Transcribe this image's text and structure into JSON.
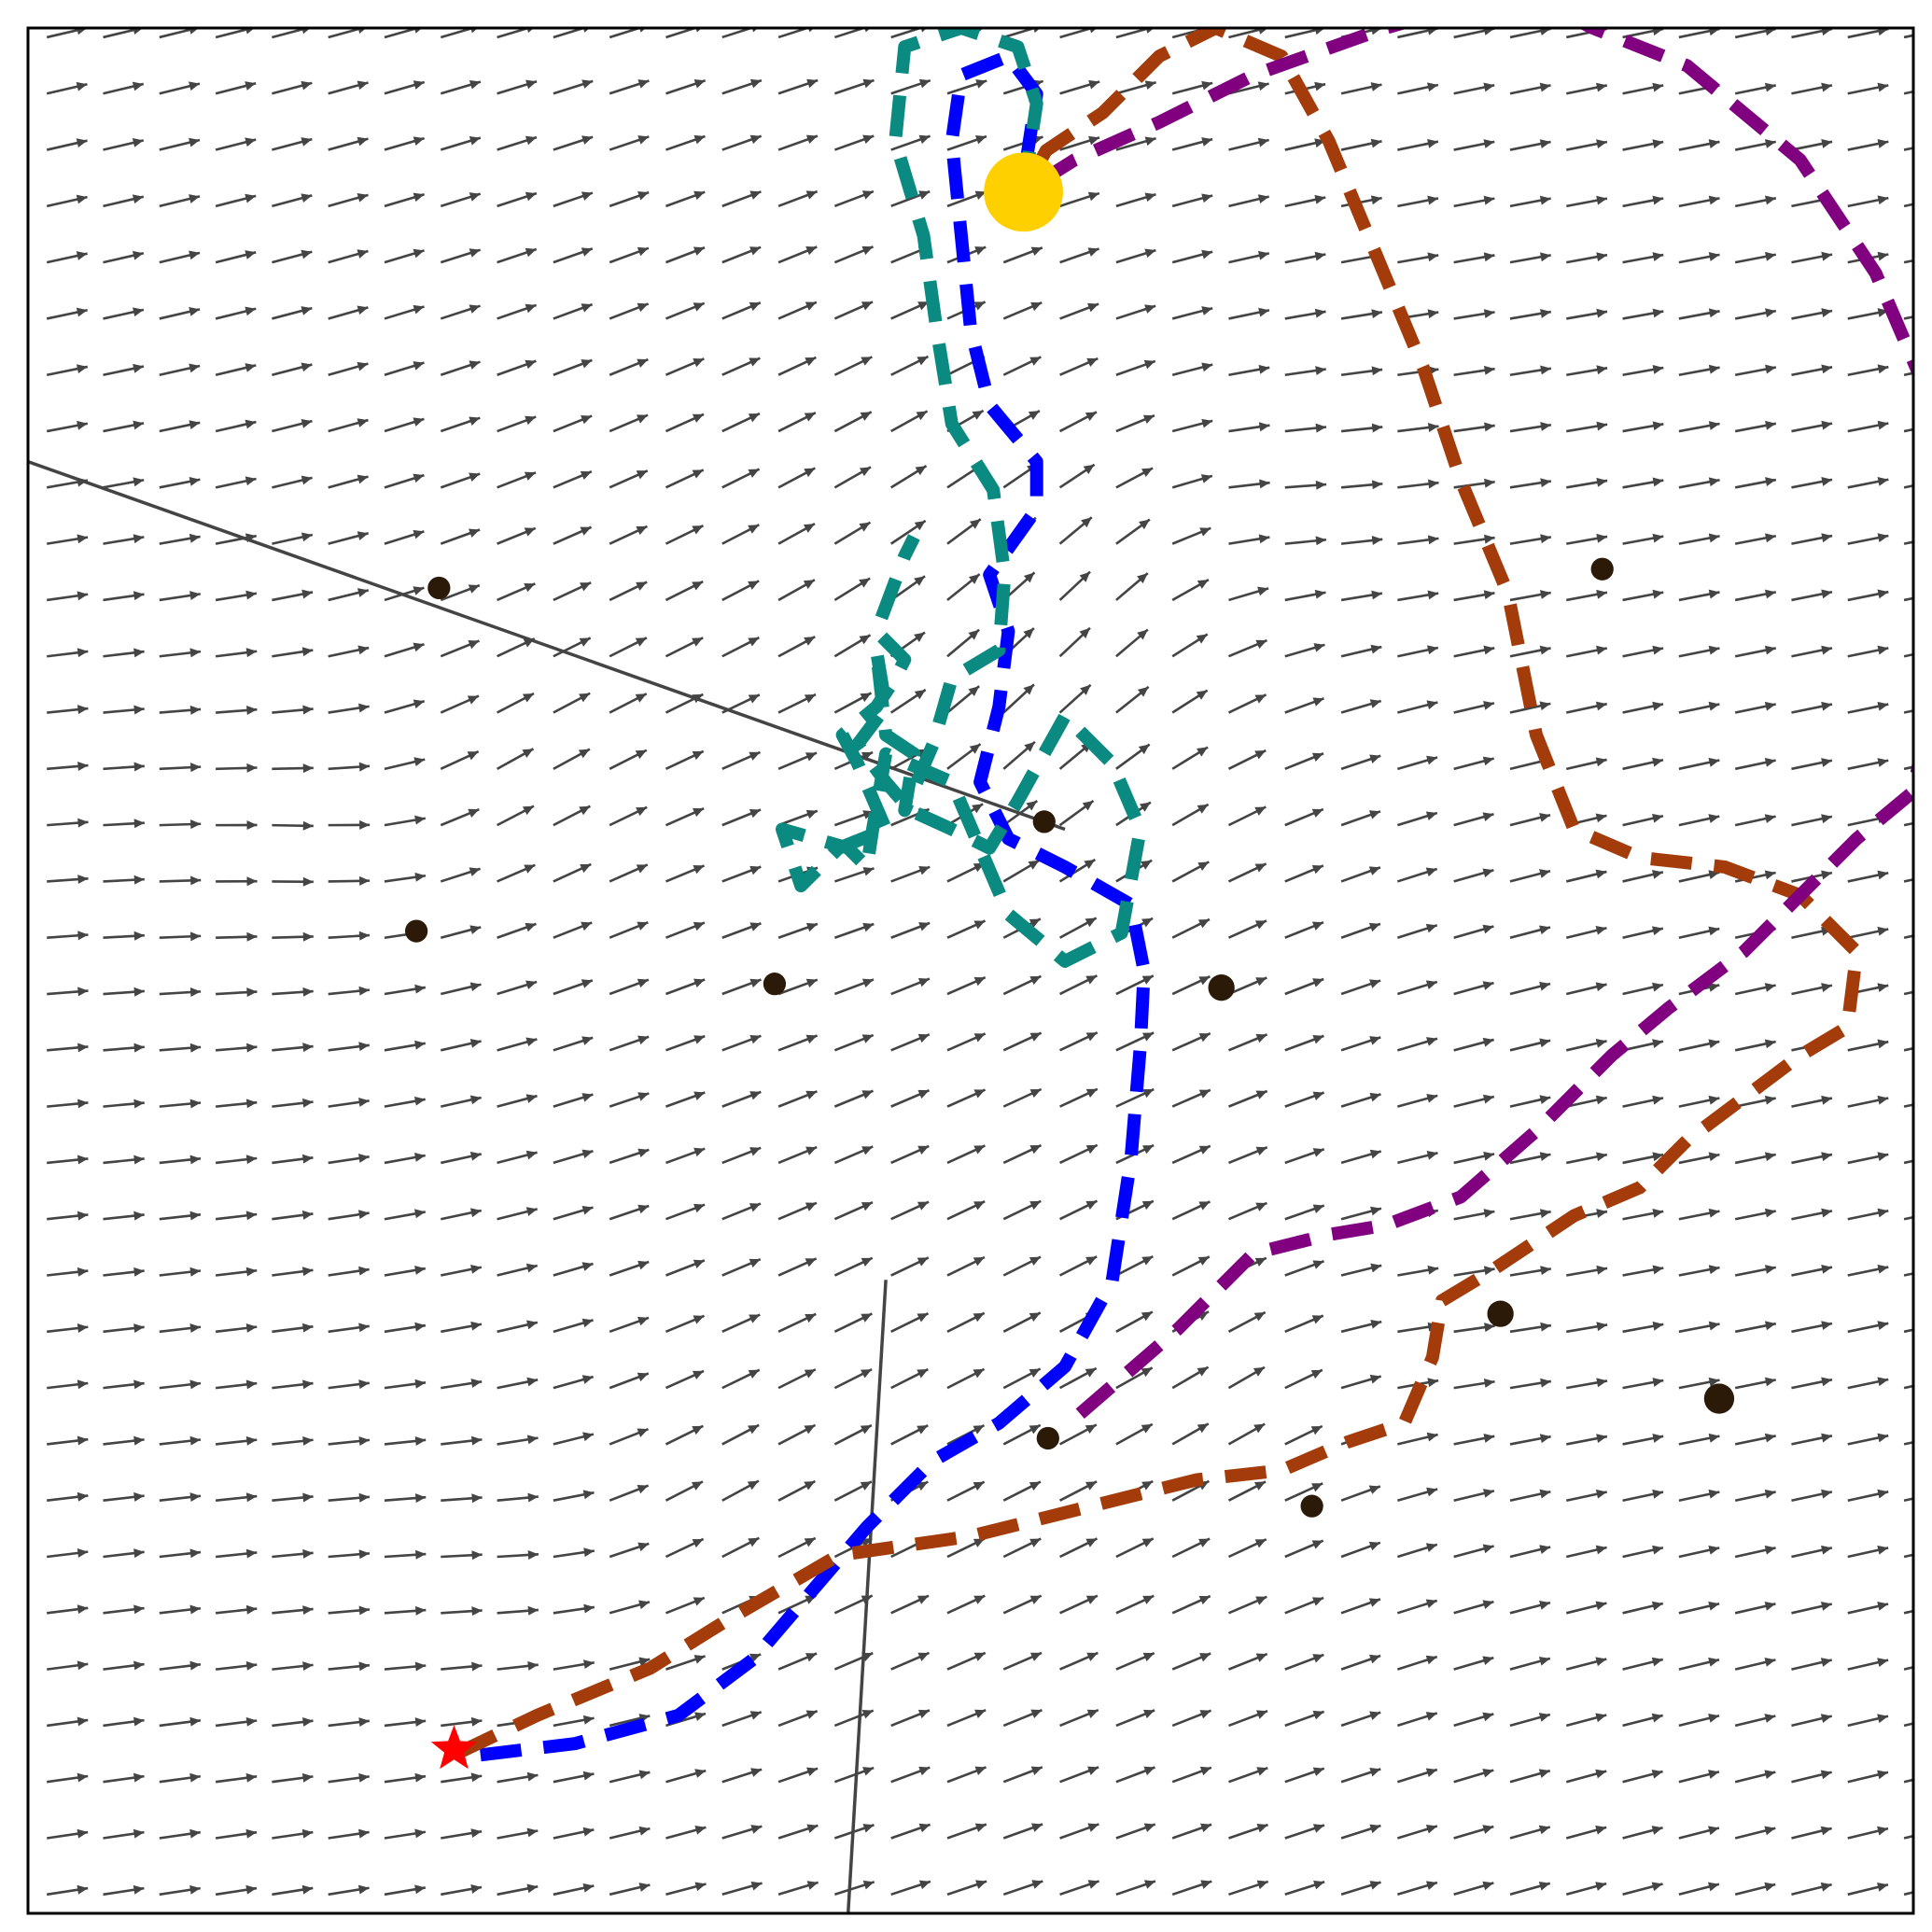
{
  "chart_data": {
    "type": "quiver",
    "title": "",
    "xlabel": "",
    "ylabel": "",
    "xlim": [
      0,
      1
    ],
    "ylim": [
      0,
      1
    ],
    "grid": false,
    "legend": "none",
    "colors": {
      "arrow": "#444444",
      "obstacle": "#2b1a08",
      "wall": "#444444",
      "goal": "#ffd000",
      "start": "#ff0000"
    },
    "field": {
      "nx": 34,
      "ny": 34,
      "base_angle_deg": 12,
      "vortices": [
        {
          "x": 0.2,
          "y": 0.57,
          "strength": 1.0
        },
        {
          "x": 0.48,
          "y": 0.58,
          "strength": 0.8
        },
        {
          "x": 0.6,
          "y": 0.74,
          "strength": -1.2
        },
        {
          "x": 0.3,
          "y": 0.19,
          "strength": 0.9
        },
        {
          "x": 0.68,
          "y": 0.3,
          "strength": -0.8
        }
      ]
    },
    "obstacles": [
      {
        "x": 0.218,
        "y": 0.703,
        "r": 0.006
      },
      {
        "x": 0.835,
        "y": 0.713,
        "r": 0.006
      },
      {
        "x": 0.539,
        "y": 0.579,
        "r": 0.006
      },
      {
        "x": 0.206,
        "y": 0.521,
        "r": 0.006
      },
      {
        "x": 0.396,
        "y": 0.493,
        "r": 0.006
      },
      {
        "x": 0.633,
        "y": 0.491,
        "r": 0.007
      },
      {
        "x": 0.781,
        "y": 0.318,
        "r": 0.007
      },
      {
        "x": 0.897,
        "y": 0.273,
        "r": 0.008
      },
      {
        "x": 0.541,
        "y": 0.252,
        "r": 0.006
      },
      {
        "x": 0.681,
        "y": 0.216,
        "r": 0.006
      }
    ],
    "walls": [
      {
        "x1": 0.0,
        "y1": 0.77,
        "x2": 0.55,
        "y2": 0.575
      },
      {
        "x1": 0.455,
        "y1": 0.336,
        "x2": 0.435,
        "y2": 0.0
      }
    ],
    "goal": {
      "x": 0.528,
      "y": 0.913,
      "r": 0.021
    },
    "start": {
      "x": 0.226,
      "y": 0.087
    },
    "series": [
      {
        "color": "#0000ff",
        "points": [
          [
            0.24,
            0.084
          ],
          [
            0.29,
            0.09
          ],
          [
            0.345,
            0.105
          ],
          [
            0.385,
            0.135
          ],
          [
            0.415,
            0.17
          ],
          [
            0.445,
            0.205
          ],
          [
            0.48,
            0.24
          ],
          [
            0.515,
            0.26
          ],
          [
            0.55,
            0.29
          ],
          [
            0.575,
            0.335
          ],
          [
            0.585,
            0.4
          ],
          [
            0.59,
            0.46
          ],
          [
            0.592,
            0.5
          ],
          [
            0.585,
            0.535
          ],
          [
            0.55,
            0.555
          ],
          [
            0.52,
            0.57
          ],
          [
            0.505,
            0.6
          ],
          [
            0.515,
            0.64
          ],
          [
            0.52,
            0.68
          ],
          [
            0.51,
            0.71
          ],
          [
            0.535,
            0.745
          ],
          [
            0.535,
            0.77
          ],
          [
            0.51,
            0.8
          ],
          [
            0.5,
            0.84
          ],
          [
            0.495,
            0.89
          ],
          [
            0.49,
            0.94
          ],
          [
            0.495,
            0.975
          ],
          [
            0.52,
            0.985
          ],
          [
            0.535,
            0.965
          ],
          [
            0.528,
            0.92
          ]
        ]
      },
      {
        "color": "#0a8a80",
        "points": [
          [
            0.528,
            0.913
          ],
          [
            0.535,
            0.96
          ],
          [
            0.525,
            0.99
          ],
          [
            0.495,
            1.0
          ],
          [
            0.465,
            0.99
          ],
          [
            0.46,
            0.94
          ],
          [
            0.475,
            0.89
          ],
          [
            0.482,
            0.84
          ],
          [
            0.49,
            0.79
          ],
          [
            0.512,
            0.755
          ],
          [
            0.518,
            0.71
          ],
          [
            0.515,
            0.67
          ],
          [
            0.49,
            0.655
          ],
          [
            0.48,
            0.62
          ],
          [
            0.465,
            0.585
          ],
          [
            0.47,
            0.615
          ],
          [
            0.455,
            0.625
          ],
          [
            0.45,
            0.67
          ],
          [
            0.455,
            0.64
          ],
          [
            0.44,
            0.62
          ],
          [
            0.455,
            0.6
          ],
          [
            0.468,
            0.585
          ],
          [
            0.49,
            0.575
          ],
          [
            0.51,
            0.565
          ],
          [
            0.525,
            0.59
          ],
          [
            0.55,
            0.635
          ],
          [
            0.575,
            0.61
          ],
          [
            0.59,
            0.575
          ],
          [
            0.58,
            0.52
          ],
          [
            0.55,
            0.505
          ],
          [
            0.52,
            0.53
          ],
          [
            0.505,
            0.565
          ],
          [
            0.49,
            0.6
          ],
          [
            0.455,
            0.615
          ],
          [
            0.448,
            0.575
          ],
          [
            0.445,
            0.555
          ],
          [
            0.435,
            0.565
          ],
          [
            0.4,
            0.575
          ],
          [
            0.41,
            0.545
          ],
          [
            0.43,
            0.565
          ],
          [
            0.455,
            0.575
          ],
          [
            0.44,
            0.61
          ],
          [
            0.432,
            0.625
          ],
          [
            0.45,
            0.64
          ],
          [
            0.46,
            0.655
          ],
          [
            0.465,
            0.665
          ],
          [
            0.45,
            0.68
          ],
          [
            0.465,
            0.72
          ],
          [
            0.47,
            0.73
          ]
        ]
      },
      {
        "color": "#a33c0a",
        "points": [
          [
            0.228,
            0.085
          ],
          [
            0.27,
            0.105
          ],
          [
            0.33,
            0.13
          ],
          [
            0.37,
            0.155
          ],
          [
            0.43,
            0.19
          ],
          [
            0.5,
            0.2
          ],
          [
            0.56,
            0.215
          ],
          [
            0.62,
            0.23
          ],
          [
            0.665,
            0.235
          ],
          [
            0.7,
            0.25
          ],
          [
            0.73,
            0.26
          ],
          [
            0.745,
            0.295
          ],
          [
            0.75,
            0.325
          ],
          [
            0.775,
            0.34
          ],
          [
            0.82,
            0.37
          ],
          [
            0.855,
            0.385
          ],
          [
            0.88,
            0.41
          ],
          [
            0.92,
            0.44
          ],
          [
            0.94,
            0.455
          ],
          [
            0.965,
            0.47
          ],
          [
            0.97,
            0.51
          ],
          [
            0.94,
            0.54
          ],
          [
            0.9,
            0.555
          ],
          [
            0.855,
            0.56
          ],
          [
            0.82,
            0.575
          ],
          [
            0.8,
            0.625
          ],
          [
            0.785,
            0.7
          ],
          [
            0.76,
            0.76
          ],
          [
            0.74,
            0.82
          ],
          [
            0.715,
            0.88
          ],
          [
            0.69,
            0.94
          ],
          [
            0.665,
            0.985
          ],
          [
            0.63,
            1.0
          ],
          [
            0.6,
            0.985
          ],
          [
            0.57,
            0.955
          ],
          [
            0.54,
            0.935
          ],
          [
            0.528,
            0.913
          ]
        ]
      },
      {
        "color": "#800080",
        "points": [
          [
            0.558,
            0.265
          ],
          [
            0.61,
            0.31
          ],
          [
            0.65,
            0.35
          ],
          [
            0.69,
            0.36
          ],
          [
            0.72,
            0.365
          ],
          [
            0.76,
            0.38
          ],
          [
            0.8,
            0.415
          ],
          [
            0.84,
            0.455
          ],
          [
            0.87,
            0.48
          ],
          [
            0.91,
            0.51
          ],
          [
            0.94,
            0.54
          ],
          [
            0.97,
            0.57
          ],
          [
            1.0,
            0.595
          ],
          [
            1.02,
            0.7
          ],
          [
            1.01,
            0.8
          ],
          [
            0.98,
            0.87
          ],
          [
            0.94,
            0.93
          ],
          [
            0.88,
            0.98
          ],
          [
            0.83,
            1.0
          ],
          [
            0.79,
            1.02
          ],
          [
            0.72,
            1.0
          ],
          [
            0.65,
            0.975
          ],
          [
            0.6,
            0.95
          ],
          [
            0.555,
            0.93
          ],
          [
            0.528,
            0.913
          ]
        ]
      }
    ]
  }
}
